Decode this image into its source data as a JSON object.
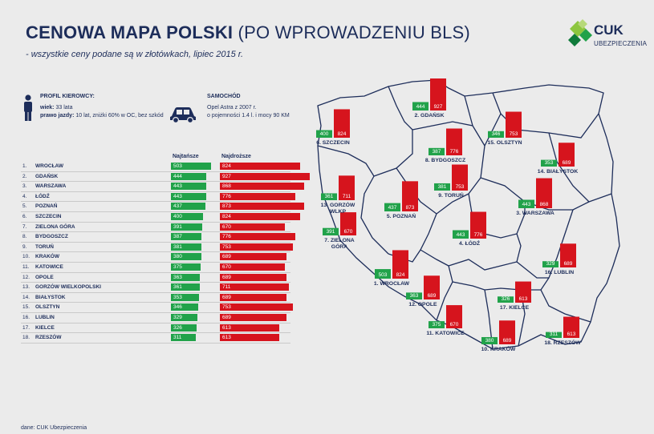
{
  "header": {
    "title_bold": "CENOWA MAPA POLSKI",
    "title_light": "(PO WPROWADZENIU BLS)",
    "subtitle": "- wszystkie ceny podane są w złotówkach, lipiec 2015 r."
  },
  "brand": {
    "name": "CUK",
    "tagline": "UBEZPIECZENIA",
    "colors": {
      "green": "#21a24a",
      "red": "#d6141d",
      "navy": "#1d2d5a"
    }
  },
  "profile": {
    "heading": "PROFIL KIEROWCY:",
    "age_label": "wiek:",
    "age_value": "33 lata",
    "license_label": "prawo jazdy:",
    "license_value": "10 lat, zniżki 60% w OC, bez szkód"
  },
  "car": {
    "heading": "SAMOCHÓD",
    "line1": "Opel Astra z 2007 r.",
    "line2": "o pojemności 1.4 l. i mocy 90 KM"
  },
  "columns": {
    "cheapest": "Najtańsze",
    "most_expensive": "Najdroższe"
  },
  "chart_data": {
    "type": "bar",
    "series": [
      {
        "name": "Najtańsze",
        "color": "#21a24a"
      },
      {
        "name": "Najdroższe",
        "color": "#d6141d"
      }
    ],
    "rows": [
      {
        "rank": "1.",
        "city": "WROCŁAW",
        "cheap": 503,
        "expensive": 824
      },
      {
        "rank": "2.",
        "city": "GDAŃSK",
        "cheap": 444,
        "expensive": 927
      },
      {
        "rank": "3.",
        "city": "WARSZAWA",
        "cheap": 443,
        "expensive": 868
      },
      {
        "rank": "4.",
        "city": "ŁÓDŹ",
        "cheap": 443,
        "expensive": 776
      },
      {
        "rank": "5.",
        "city": "POZNAŃ",
        "cheap": 437,
        "expensive": 873
      },
      {
        "rank": "6.",
        "city": "SZCZECIN",
        "cheap": 400,
        "expensive": 824
      },
      {
        "rank": "7.",
        "city": "ZIELONA GÓRA",
        "cheap": 391,
        "expensive": 670
      },
      {
        "rank": "8.",
        "city": "BYDGOSZCZ",
        "cheap": 387,
        "expensive": 776
      },
      {
        "rank": "9.",
        "city": "TORUŃ",
        "cheap": 381,
        "expensive": 753
      },
      {
        "rank": "10.",
        "city": "KRAKÓW",
        "cheap": 380,
        "expensive": 689
      },
      {
        "rank": "11.",
        "city": "KATOWICE",
        "cheap": 375,
        "expensive": 670
      },
      {
        "rank": "12.",
        "city": "OPOLE",
        "cheap": 363,
        "expensive": 689
      },
      {
        "rank": "13.",
        "city": "GORZÓW WIELKOPOLSKI",
        "cheap": 361,
        "expensive": 711
      },
      {
        "rank": "14.",
        "city": "BIAŁYSTOK",
        "cheap": 353,
        "expensive": 689
      },
      {
        "rank": "15.",
        "city": "OLSZTYN",
        "cheap": 346,
        "expensive": 753
      },
      {
        "rank": "16.",
        "city": "LUBLIN",
        "cheap": 329,
        "expensive": 689
      },
      {
        "rank": "17.",
        "city": "KIELCE",
        "cheap": 326,
        "expensive": 613
      },
      {
        "rank": "18.",
        "city": "RZESZÓW",
        "cheap": 311,
        "expensive": 613
      }
    ],
    "map_labels": [
      {
        "label": "1. WROCŁAW",
        "cheap": 503,
        "expensive": 824
      },
      {
        "label": "2. GDAŃSK",
        "cheap": 444,
        "expensive": 927
      },
      {
        "label": "3. WARSZAWA",
        "cheap": 443,
        "expensive": 868
      },
      {
        "label": "4. ŁÓDŹ",
        "cheap": 443,
        "expensive": 776
      },
      {
        "label": "5. POZNAŃ",
        "cheap": 437,
        "expensive": 873
      },
      {
        "label": "6. SZCZECIN",
        "cheap": 400,
        "expensive": 824
      },
      {
        "label": "7. ZIELONA\nGÓRA",
        "cheap": 391,
        "expensive": 670
      },
      {
        "label": "8. BYDGOSZCZ",
        "cheap": 387,
        "expensive": 776
      },
      {
        "label": "9. TORUŃ",
        "cheap": 381,
        "expensive": 753
      },
      {
        "label": "10. KRAKÓW",
        "cheap": 380,
        "expensive": 689
      },
      {
        "label": "11. KATOWICE",
        "cheap": 375,
        "expensive": 670
      },
      {
        "label": "12. OPOLE",
        "cheap": 363,
        "expensive": 689
      },
      {
        "label": "13. GORZÓW\nWLKP",
        "cheap": 361,
        "expensive": 711
      },
      {
        "label": "14. BIAŁYSTOK",
        "cheap": 353,
        "expensive": 689
      },
      {
        "label": "15. OLSZTYN",
        "cheap": 346,
        "expensive": 753
      },
      {
        "label": "16. LUBLIN",
        "cheap": 329,
        "expensive": 689
      },
      {
        "label": "17. KIELCE",
        "cheap": 326,
        "expensive": 613
      },
      {
        "label": "18. RZESZÓW",
        "cheap": 311,
        "expensive": 613
      }
    ]
  },
  "source": "dane: CUK Ubezpieczenia"
}
